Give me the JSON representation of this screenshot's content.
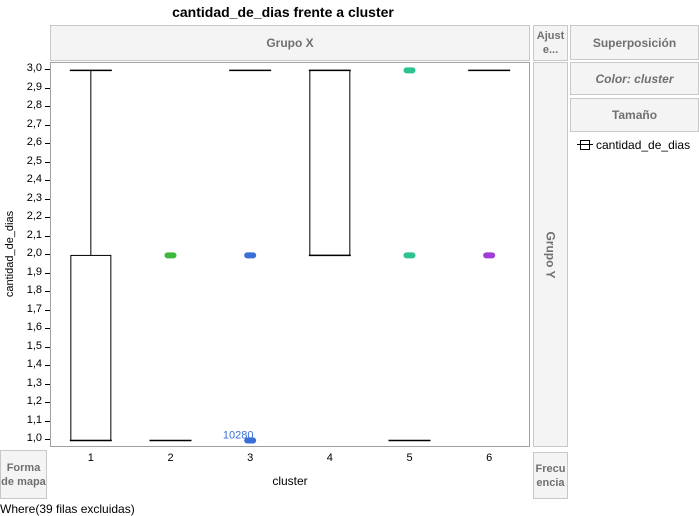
{
  "title": "cantidad_de_dias frente a cluster",
  "zones": {
    "group_x": "Grupo X",
    "group_y": "Grupo Y",
    "fit": "Ajust e...",
    "overlay": "Superposición",
    "color": "Color: cluster",
    "size": "Tamaño",
    "map_shape": "Forma de mapa",
    "frequency": "Frecu encia"
  },
  "legend": {
    "item": "cantidad_de_dias"
  },
  "footer": "Where(39 filas excluidas)",
  "chart_data": {
    "type": "box",
    "title": "cantidad_de_dias frente a cluster",
    "xlabel": "cluster",
    "ylabel": "cantidad_de_dias",
    "categories": [
      "1",
      "2",
      "3",
      "4",
      "5",
      "6"
    ],
    "ylim": [
      0.97,
      3.04
    ],
    "yticks": [
      1.0,
      1.1,
      1.2,
      1.3,
      1.4,
      1.5,
      1.6,
      1.7,
      1.8,
      1.9,
      2.0,
      2.1,
      2.2,
      2.3,
      2.4,
      2.5,
      2.6,
      2.7,
      2.8,
      2.9,
      3.0
    ],
    "ytick_labels": [
      "1,0",
      "1,1",
      "1,2",
      "1,3",
      "1,4",
      "1,5",
      "1,6",
      "1,7",
      "1,8",
      "1,9",
      "2,0",
      "2,1",
      "2,2",
      "2,3",
      "2,4",
      "2,5",
      "2,6",
      "2,7",
      "2,8",
      "2,9",
      "3,0"
    ],
    "boxes": [
      {
        "cluster": "1",
        "min": 1.0,
        "q1": 1.0,
        "median": 2.0,
        "q3": 2.0,
        "max": 3.0
      },
      {
        "cluster": "2",
        "min": 1.0,
        "q1": 1.0,
        "median": 1.0,
        "q3": 1.0,
        "max": 1.0
      },
      {
        "cluster": "3",
        "min": 3.0,
        "q1": 3.0,
        "median": 3.0,
        "q3": 3.0,
        "max": 3.0
      },
      {
        "cluster": "4",
        "min": 2.0,
        "q1": 2.0,
        "median": 3.0,
        "q3": 3.0,
        "max": 3.0
      },
      {
        "cluster": "5",
        "min": 1.0,
        "q1": 1.0,
        "median": 1.0,
        "q3": 1.0,
        "max": 1.0
      },
      {
        "cluster": "6",
        "min": 3.0,
        "q1": 3.0,
        "median": 3.0,
        "q3": 3.0,
        "max": 3.0
      }
    ],
    "points": [
      {
        "cluster": "2",
        "y": 2.0,
        "color": "#3cb83c"
      },
      {
        "cluster": "3",
        "y": 2.0,
        "color": "#3a6fd8"
      },
      {
        "cluster": "3",
        "y": 1.0,
        "color": "#3a6fd8",
        "label": "10280"
      },
      {
        "cluster": "5",
        "y": 3.0,
        "color": "#2ec28e"
      },
      {
        "cluster": "5",
        "y": 2.0,
        "color": "#2ec28e"
      },
      {
        "cluster": "6",
        "y": 2.0,
        "color": "#a03cd8"
      }
    ],
    "label_color": "#3a6fd8",
    "grid": false
  }
}
